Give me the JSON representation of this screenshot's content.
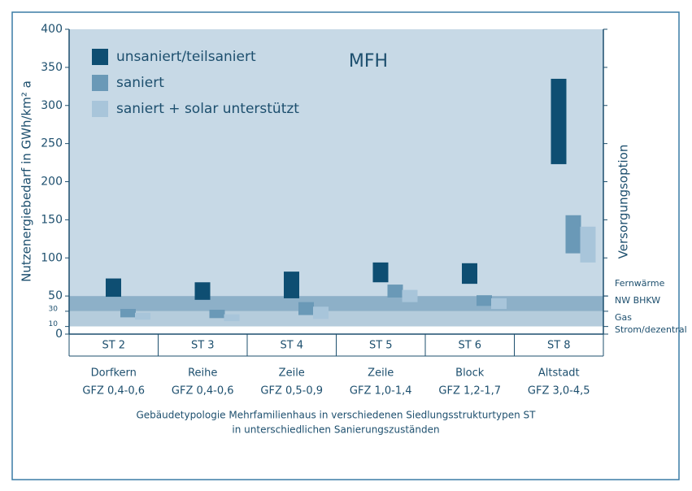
{
  "chart_data": {
    "type": "floating_bar",
    "title": "MFH",
    "y_label": "Nutzenergiebedarf in GWh/km² a",
    "y2_label": "Versorgungsoption",
    "x_label": [
      "Gebäudetypologie Mehrfamilienhaus in verschiedenen Siedlungsstrukturtypen ST",
      "in unterschiedlichen Sanierungszuständen"
    ],
    "categories": [
      "ST 2",
      "ST 3",
      "ST 4",
      "ST 5",
      "ST 6",
      "ST 8"
    ],
    "category_names": [
      "Dorfkern",
      "Reihe",
      "Zeile",
      "Zeile",
      "Block",
      "Altstadt"
    ],
    "category_gfz": [
      "GFZ  0,4-0,6",
      "GFZ  0,4-0,6",
      "GFZ  0,5-0,9",
      "GFZ  1,0-1,4",
      "GFZ  1,2-1,7",
      "GFZ  3,0-4,5"
    ],
    "series": [
      {
        "name": "unsaniert/teilsaniert",
        "color": "#0e4e72",
        "low": [
          49,
          45,
          47,
          68,
          66,
          223
        ],
        "high": [
          73,
          68,
          82,
          94,
          93,
          335
        ]
      },
      {
        "name": "saniert",
        "color": "#6a99b7",
        "low": [
          22,
          21,
          25,
          48,
          37,
          106
        ],
        "high": [
          33,
          32,
          42,
          65,
          51,
          156
        ]
      },
      {
        "name": "saniert + solar unterstützt",
        "color": "#a8c5da",
        "low": [
          19,
          17,
          20,
          42,
          33,
          94
        ],
        "high": [
          28,
          26,
          36,
          58,
          47,
          141
        ]
      }
    ],
    "ylim": [
      0,
      400
    ],
    "yticks": [
      0,
      50,
      100,
      150,
      200,
      250,
      300,
      350,
      400
    ],
    "minor_yticks": [
      10,
      30
    ],
    "supply_options": [
      {
        "label": "Fernwärme",
        "from": 50,
        "to": 400,
        "color": "#c7d9e6"
      },
      {
        "label": "NW BHKW",
        "from": 30,
        "to": 50,
        "color": "#8db0c8"
      },
      {
        "label": "Gas",
        "from": 10,
        "to": 30,
        "color": "#b5ccdc"
      },
      {
        "label": "Strom/dezentral",
        "from": 0,
        "to": 10,
        "color": "#ffffff"
      }
    ]
  }
}
